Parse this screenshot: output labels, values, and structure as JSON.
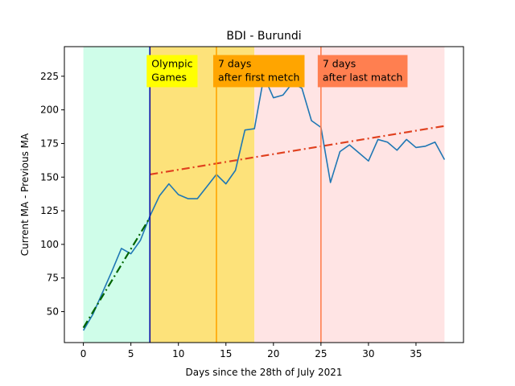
{
  "chart_data": {
    "type": "line",
    "title": "BDI - Burundi",
    "xlabel": "Days since the 28th of July 2021",
    "ylabel": "Current MA - Previous MA",
    "xlim": [
      -2,
      40
    ],
    "ylim": [
      27,
      247
    ],
    "xticks": [
      0,
      5,
      10,
      15,
      20,
      25,
      30,
      35
    ],
    "yticks": [
      50,
      75,
      100,
      125,
      150,
      175,
      200,
      225
    ],
    "grid": false,
    "regions": [
      {
        "name": "pre-games",
        "x0": 0,
        "x1": 7,
        "color": "#cffde9"
      },
      {
        "name": "games",
        "x0": 7,
        "x1": 18,
        "color": "#fde27a"
      },
      {
        "name": "post-games",
        "x0": 18,
        "x1": 38,
        "color": "#ffe4e4"
      }
    ],
    "vlines": [
      {
        "name": "olympic-games",
        "x": 7,
        "color": "#0a0aa0"
      },
      {
        "name": "first-match",
        "x": 14,
        "color": "#ffa500"
      },
      {
        "name": "last-match",
        "x": 25,
        "color": "#ff7f50"
      }
    ],
    "annotations": [
      {
        "name": "olympic-games",
        "lines": [
          "Olympic",
          "Games"
        ],
        "x": 7,
        "y": 230,
        "color": "#ffff00"
      },
      {
        "name": "first-match",
        "lines": [
          "7 days",
          "after first metch"
        ],
        "x": 14,
        "y": 230,
        "color": "#ffa500"
      },
      {
        "name": "last-match",
        "lines": [
          "7 days",
          "after last match"
        ],
        "x": 25,
        "y": 230,
        "color": "#ff7f50"
      }
    ],
    "series": [
      {
        "color": "#1f77b4",
        "style": "solid",
        "x": [
          0,
          1,
          2,
          3,
          4,
          5,
          6,
          7,
          8,
          9,
          10,
          11,
          12,
          13,
          14,
          15,
          16,
          17,
          18,
          19,
          20,
          21,
          22,
          23,
          24,
          25,
          26,
          27,
          28,
          29,
          30,
          31,
          32,
          33,
          34,
          35,
          36,
          37,
          38
        ],
        "y": [
          36,
          48,
          64,
          80,
          97,
          93,
          103,
          121,
          136,
          145,
          137,
          134,
          134,
          143,
          152,
          145,
          155,
          185,
          186,
          225,
          209,
          211,
          220,
          216,
          192,
          187,
          146,
          169,
          174,
          168,
          162,
          178,
          176,
          170,
          178,
          172,
          173,
          176,
          163
        ]
      },
      {
        "color": "#006400",
        "style": "dashdot",
        "x": [
          0,
          7
        ],
        "y": [
          38,
          120
        ]
      },
      {
        "color": "#e0401e",
        "style": "dashdot",
        "x": [
          7,
          38
        ],
        "y": [
          152,
          188
        ]
      }
    ]
  }
}
